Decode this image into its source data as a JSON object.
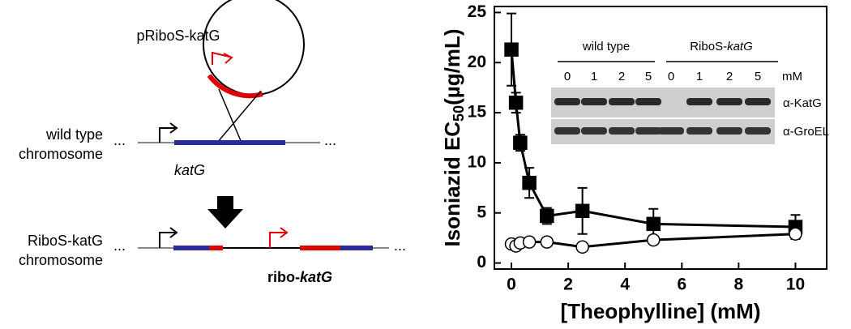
{
  "chart_data": {
    "type": "line",
    "x_label": "[Theophylline] (mM)",
    "y_label": "Isoniazid EC",
    "y_label_sub": "50",
    "y_label_unit": "(µg/mL)",
    "x": [
      0,
      0.16,
      0.31,
      0.63,
      1.25,
      2.5,
      5,
      10
    ],
    "series": [
      {
        "color": "#000000",
        "marker": "square",
        "values": [
          21.3,
          16,
          12,
          8,
          4.7,
          5.2,
          3.9,
          3.6
        ],
        "errors": [
          3.6,
          1.0,
          0.8,
          1.5,
          0.8,
          2.3,
          1.5,
          1.2
        ]
      },
      {
        "color": "#000000",
        "marker": "circle",
        "values": [
          1.9,
          1.7,
          2.0,
          2.1,
          2.1,
          1.6,
          2.3,
          2.9
        ],
        "errors": [
          0.1,
          0.1,
          0.1,
          0.1,
          0.1,
          0.1,
          0.2,
          0.4
        ]
      }
    ],
    "xlim": [
      -0.6,
      11.1
    ],
    "ylim": [
      -0.6,
      25.6
    ],
    "xticks": [
      0,
      2,
      4,
      6,
      8,
      10
    ],
    "yticks": [
      0,
      5,
      10,
      15,
      20,
      25
    ],
    "grid": false
  },
  "inset": {
    "groups": [
      "wild type",
      "RiboS-"
    ],
    "group_italic": "katG",
    "lanes": [
      "0",
      "1",
      "2",
      "5",
      "0",
      "1",
      "2",
      "5"
    ],
    "unit": "mM",
    "rows": [
      "α-KatG",
      "α-GroEL"
    ]
  },
  "diagram": {
    "plasmid": "pRiboS-katG",
    "wt_label": [
      "wild type",
      "chromosome"
    ],
    "gene": "katG",
    "new_label": [
      "RiboS-katG",
      "chromosome"
    ],
    "new_gene_prefix": "ribo-",
    "new_gene": "katG",
    "dots": "..."
  }
}
